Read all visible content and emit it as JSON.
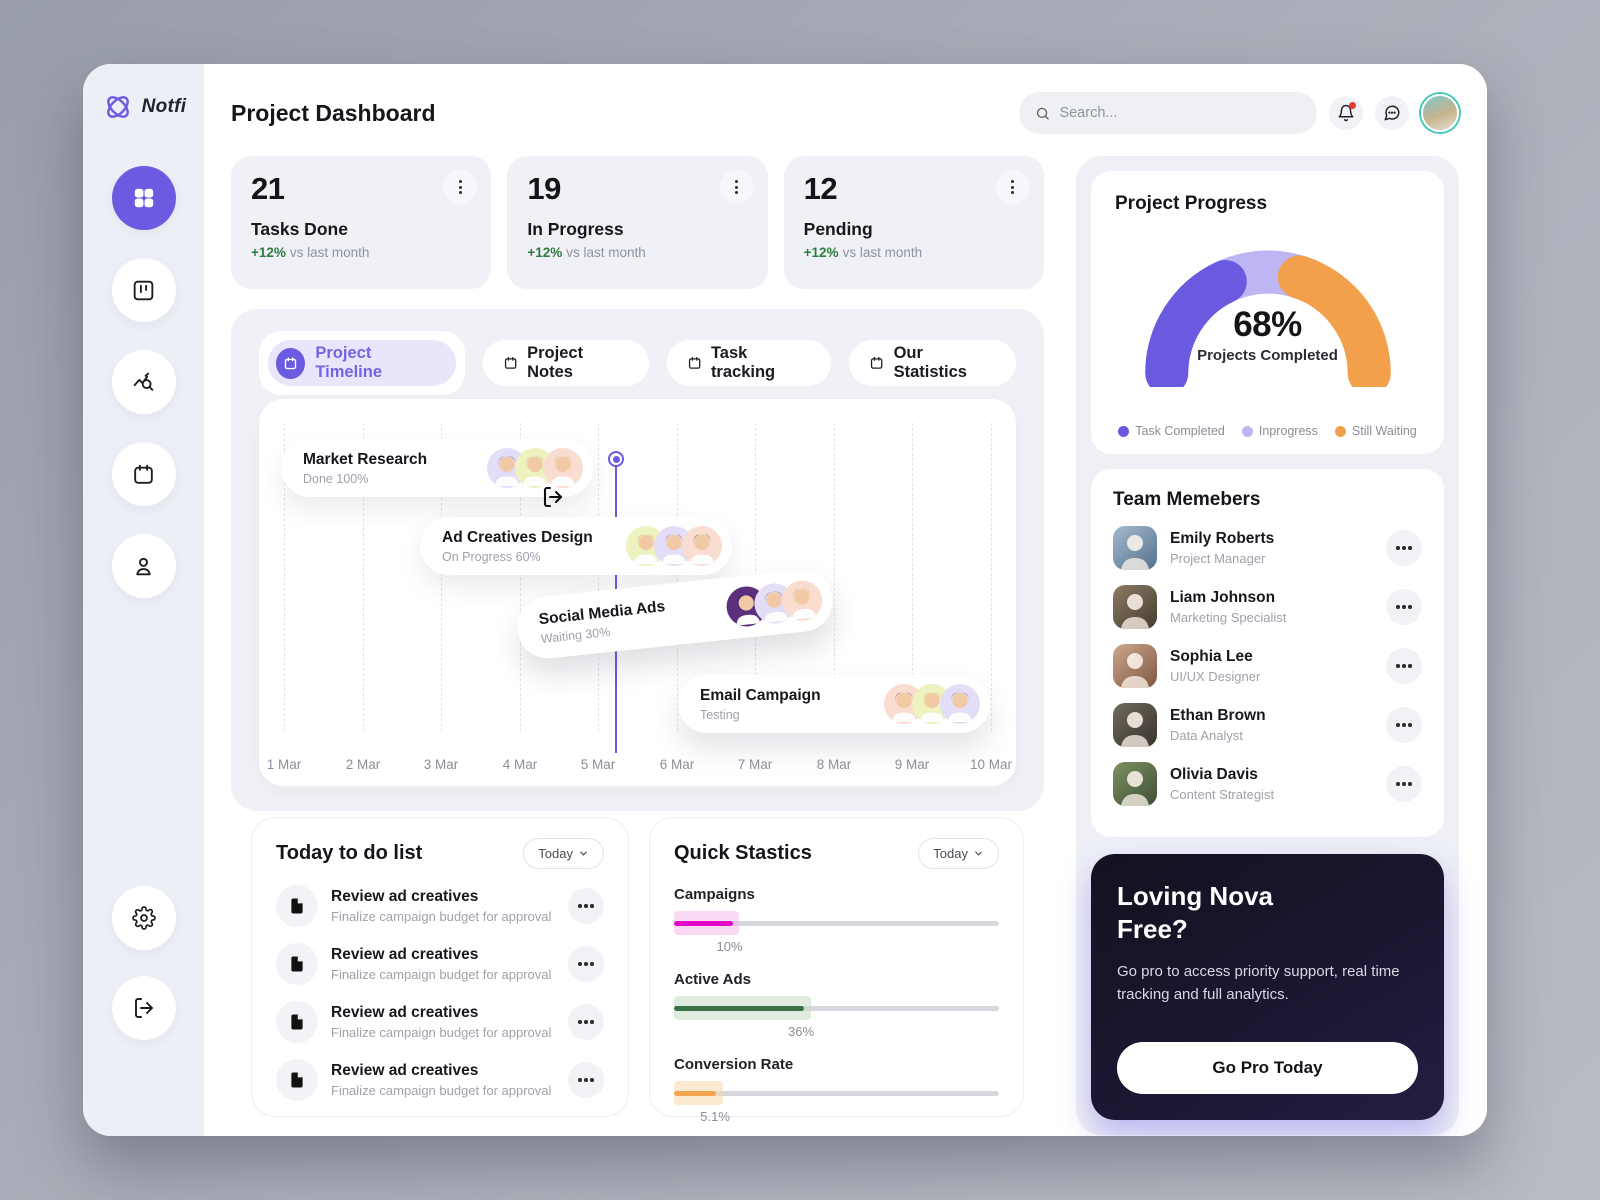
{
  "theme": {
    "accent": "#6a5be0",
    "success_green": "#2e7b3c",
    "notification_red": "#e23d32"
  },
  "app": {
    "logo_text": "Notfi",
    "page_title": "Project Dashboard"
  },
  "header": {
    "search_placeholder": "Search..."
  },
  "sidebar": {
    "items": [
      "dashboard",
      "kanban-board",
      "analytics",
      "calendar",
      "profile"
    ],
    "bottom_items": [
      "settings",
      "logout"
    ]
  },
  "stats_cards": [
    {
      "value": "21",
      "label": "Tasks Done",
      "delta": "+12%",
      "delta_text": "vs last month"
    },
    {
      "value": "19",
      "label": "In Progress",
      "delta": "+12%",
      "delta_text": "vs last month"
    },
    {
      "value": "12",
      "label": "Pending",
      "delta": "+12%",
      "delta_text": "vs last month"
    }
  ],
  "tabs": [
    {
      "label": "Project Timeline",
      "active": true
    },
    {
      "label": "Project Notes",
      "active": false
    },
    {
      "label": "Task tracking",
      "active": false
    },
    {
      "label": "Our Statistics",
      "active": false
    }
  ],
  "timeline": {
    "dates": [
      "1 Mar",
      "2 Mar",
      "3 Mar",
      "4 Mar",
      "5 Mar",
      "6 Mar",
      "7 Mar",
      "8 Mar",
      "9 Mar",
      "10 Mar"
    ],
    "today_between": "5 Mar and 6 Mar",
    "tasks": [
      {
        "title": "Market Research",
        "status": "Done 100%",
        "avatars": [
          {
            "bg": "#e3ddf8",
            "hair": "#6e4a2e"
          },
          {
            "bg": "#edf2bf",
            "hair": "#b98d52"
          },
          {
            "bg": "#f9ddd0",
            "hair": "#c49a62"
          }
        ]
      },
      {
        "title": "Ad Creatives Design",
        "status": "On Progress 60%",
        "avatars": [
          {
            "bg": "#edf2bf",
            "hair": "#c49a62"
          },
          {
            "bg": "#e3ddf8",
            "hair": "#6e4a2e"
          },
          {
            "bg": "#f9ddd0",
            "hair": "#2e2a28"
          }
        ]
      },
      {
        "title": "Social Media Ads",
        "status": "Waiting 30%",
        "avatars": [
          {
            "bg": "#5b2f7e",
            "hair": "#26222b"
          },
          {
            "bg": "#e3ddf8",
            "hair": "#6e4a2e"
          },
          {
            "bg": "#f9ddd0",
            "hair": "#c49a62"
          }
        ]
      },
      {
        "title": "Email Campaign",
        "status": "Testing",
        "avatars": [
          {
            "bg": "#f9ddd0",
            "hair": "#2e2a28"
          },
          {
            "bg": "#edf2bf",
            "hair": "#c49a62"
          },
          {
            "bg": "#e3ddf8",
            "hair": "#6e4a2e"
          }
        ]
      }
    ]
  },
  "todo": {
    "title": "Today to do list",
    "filter": "Today",
    "items": [
      {
        "title": "Review ad creatives",
        "subtitle": "Finalize campaign budget for approval"
      },
      {
        "title": "Review ad creatives",
        "subtitle": "Finalize campaign budget for approval"
      },
      {
        "title": "Review ad creatives",
        "subtitle": "Finalize campaign budget for approval"
      },
      {
        "title": "Review ad creatives",
        "subtitle": "Finalize campaign budget for approval"
      }
    ]
  },
  "quick_stats": {
    "title": "Quick Stastics",
    "filter": "Today",
    "bars": [
      {
        "label": "Campaigns",
        "value": "10%",
        "fill_pct": 18,
        "color": "#e206c8",
        "halo": "#f6b9ec"
      },
      {
        "label": "Active Ads",
        "value": "36%",
        "fill_pct": 40,
        "color": "#3a7244",
        "halo": "#c8dcc6"
      },
      {
        "label": "Conversion Rate",
        "value": "5.1%",
        "fill_pct": 13,
        "color": "#f3a64d",
        "halo": "#f8d9ab"
      }
    ]
  },
  "project_progress": {
    "title": "Project Progress",
    "percent": "68%",
    "caption": "Projects Completed",
    "segments": [
      {
        "label": "Task Completed",
        "color": "#6a5ae0",
        "span_deg": 65
      },
      {
        "label": "Inprogress",
        "color": "#bdb5f4",
        "span_deg": 50
      },
      {
        "label": "Still Waiting",
        "color": "#f2a04c",
        "span_deg": 65
      }
    ]
  },
  "team": {
    "title": "Team Memebers",
    "members": [
      {
        "name": "Emily Roberts",
        "role": "Project Manager",
        "photo_colors": [
          "#a4bace",
          "#53718c"
        ]
      },
      {
        "name": "Liam Johnson",
        "role": "Marketing Specialist",
        "photo_colors": [
          "#8c7c66",
          "#463b2f"
        ]
      },
      {
        "name": "Sophia Lee",
        "role": "UI/UX Designer",
        "photo_colors": [
          "#cca88b",
          "#7d5640"
        ]
      },
      {
        "name": "Ethan Brown",
        "role": "Data Analyst",
        "photo_colors": [
          "#6f6a5e",
          "#38342c"
        ]
      },
      {
        "name": "Olivia Davis",
        "role": "Content Strategist",
        "photo_colors": [
          "#7d9160",
          "#3e5036"
        ]
      }
    ]
  },
  "promo": {
    "title_line1": "Loving Nova",
    "title_line2": "Free?",
    "body": "Go pro to access priority support, real time tracking and full analytics.",
    "button": "Go Pro Today"
  }
}
